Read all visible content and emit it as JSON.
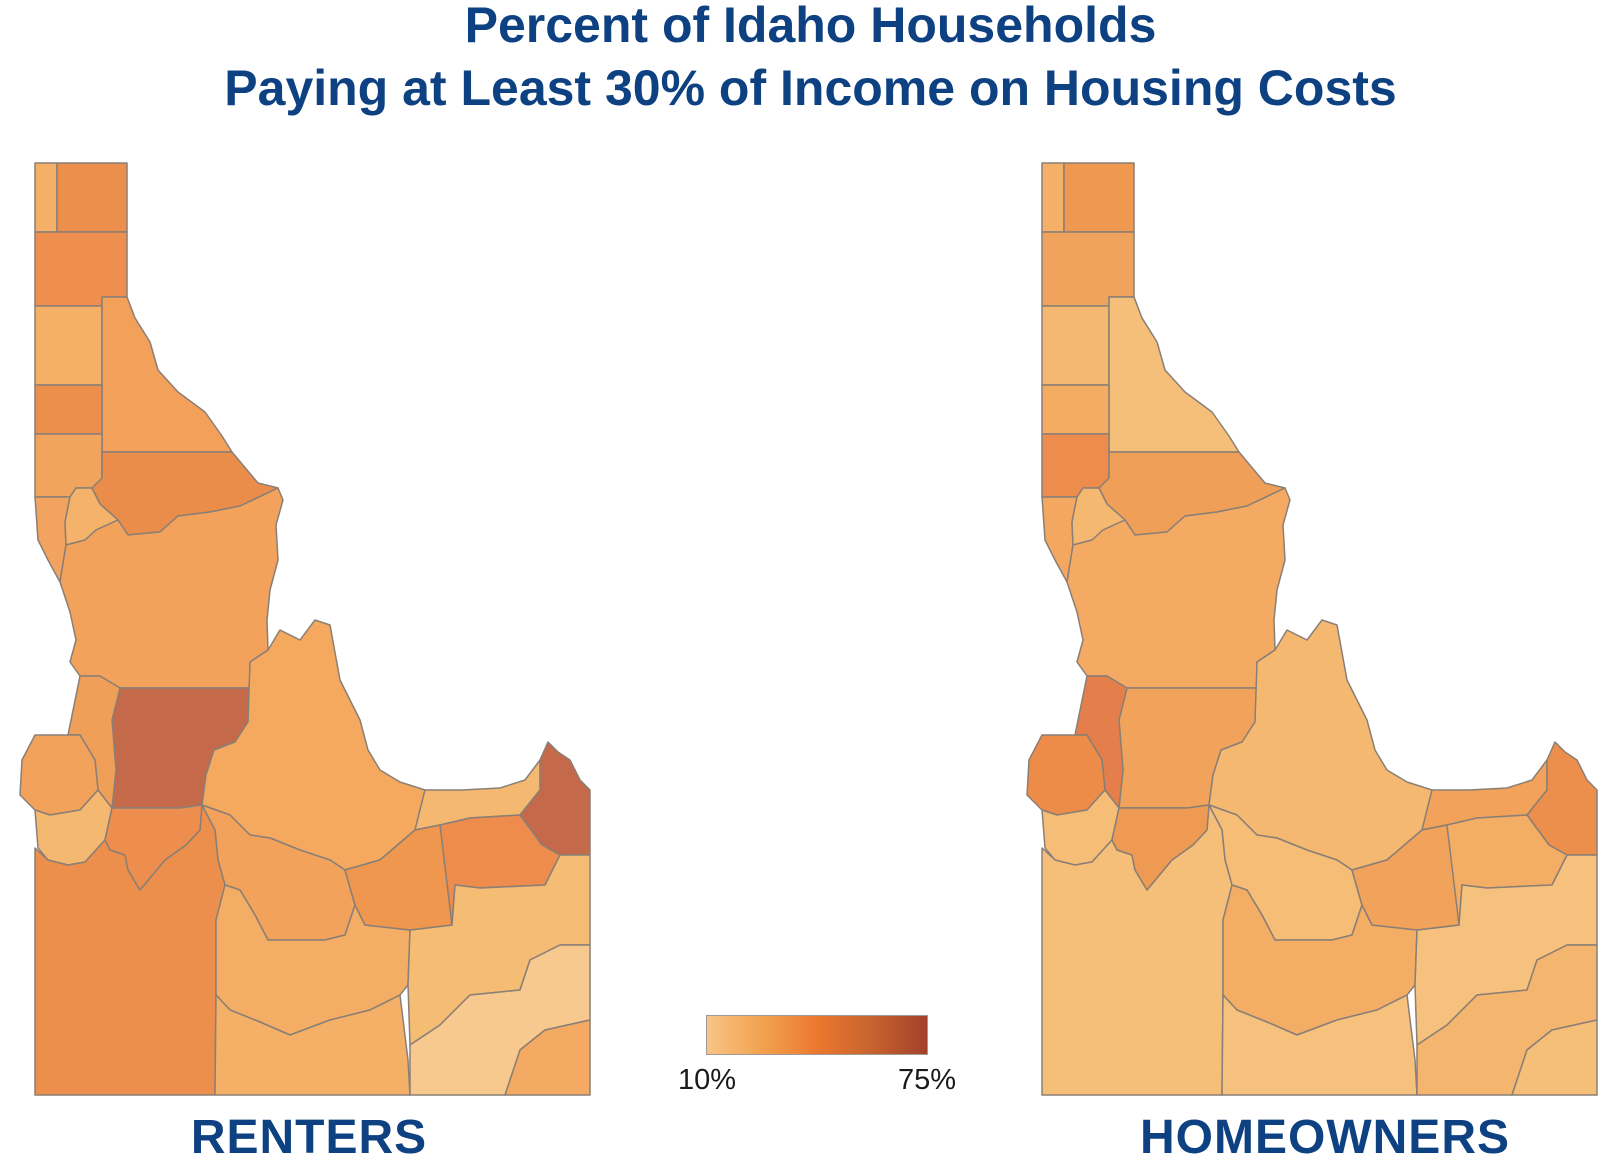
{
  "title": {
    "line1": "Percent of Idaho Households",
    "line2": "Paying at Least 30% of Income on Housing Costs"
  },
  "maps": {
    "renters": {
      "label": "RENTERS"
    },
    "homeowners": {
      "label": "HOMEOWNERS"
    }
  },
  "legend": {
    "min_label": "10%",
    "max_label": "75%",
    "min_value": 10,
    "max_value": 75,
    "colors": [
      "#f8c486",
      "#f2a24e",
      "#ec782f",
      "#c6632f",
      "#a4402a"
    ]
  },
  "county_colors": {
    "renters": [
      "#f3b066",
      "#ec8f4c",
      "#ee8e4f",
      "#f3b066",
      "#f3a05a",
      "#ec8f4c",
      "#f0a45e",
      "#ea8d4b",
      "#f3a360",
      "#f5b26a",
      "#f2a25b",
      "#c46a4a",
      "#ef9f58",
      "#f2a25b",
      "#f5b870",
      "#f0a15a",
      "#f4a95f",
      "#f2a25b",
      "#f5b870",
      "#c46a4a",
      "#ed8c4d",
      "#ec8f4c",
      "#f3ad64",
      "#f3b066",
      "#f5bc74",
      "#f8c98e",
      "#f4aa62",
      "#ed8d4e",
      "#ef964f"
    ],
    "homeowners": [
      "#f3b066",
      "#ef9950",
      "#f0a35c",
      "#f5b870",
      "#f6bf79",
      "#f4ac63",
      "#ed8c4d",
      "#ef9f58",
      "#f3a760",
      "#f5b870",
      "#f4aa62",
      "#f1a35c",
      "#e47e4b",
      "#ed8c48",
      "#f6bd77",
      "#f3b066",
      "#f5b870",
      "#f6bd77",
      "#f2a25b",
      "#ec8f4c",
      "#f3ad64",
      "#f6bf79",
      "#f3ad64",
      "#f6c17c",
      "#f6c17c",
      "#f4b56e",
      "#f6bf79",
      "#ee9a52",
      "#f1a35c"
    ]
  }
}
